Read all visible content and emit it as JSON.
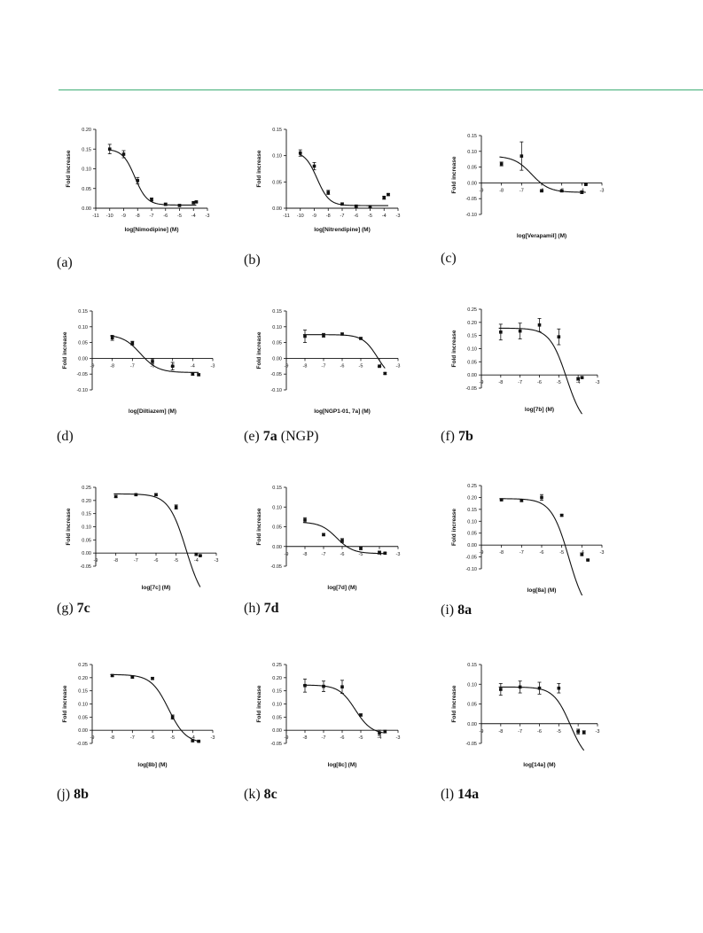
{
  "colors": {
    "rule": "#3fae75",
    "ink": "#111111"
  },
  "y_axis_label": "Fold increase",
  "chart_data": [
    {
      "type": "scatter",
      "panel_id": "a",
      "caption": {
        "letter": "(a)",
        "compound": "",
        "note": ""
      },
      "xlabel": "log[Nimodipine] (M)",
      "ylabel": "Fold increase",
      "xlim": [
        -11,
        -3
      ],
      "ylim": [
        0,
        0.2
      ],
      "xticks": [
        -11,
        -10,
        -9,
        -8,
        -7,
        -6,
        -5,
        -4,
        -3
      ],
      "yticks": [
        0,
        0.05,
        0.1,
        0.15,
        0.2
      ],
      "points": [
        [
          -10,
          0.15,
          0.012
        ],
        [
          -9,
          0.137,
          0.009
        ],
        [
          -8,
          0.07,
          0.008
        ],
        [
          -7,
          0.022,
          0.004
        ],
        [
          -6,
          0.01,
          0.003
        ],
        [
          -5,
          0.007,
          0.002
        ],
        [
          -4,
          0.014,
          0.002
        ],
        [
          -3.8,
          0.016,
          0.002
        ]
      ],
      "fit": {
        "top": 0.15,
        "bottom": 0.008,
        "logEC50": -8.2,
        "hill": -1
      }
    },
    {
      "type": "scatter",
      "panel_id": "b",
      "caption": {
        "letter": "(b)",
        "compound": "",
        "note": ""
      },
      "xlabel": "log[Nitrendipine] (M)",
      "ylabel": "Fold increase",
      "xlim": [
        -11,
        -3
      ],
      "ylim": [
        0,
        0.15
      ],
      "xticks": [
        -11,
        -10,
        -9,
        -8,
        -7,
        -6,
        -5,
        -4,
        -3
      ],
      "yticks": [
        0,
        0.05,
        0.1,
        0.15
      ],
      "points": [
        [
          -10,
          0.105,
          0.006
        ],
        [
          -9,
          0.08,
          0.007
        ],
        [
          -8,
          0.03,
          0.004
        ],
        [
          -7,
          0.008,
          0.002
        ],
        [
          -6,
          0.004,
          0.002
        ],
        [
          -5,
          0.003,
          0.002
        ],
        [
          -4,
          0.02,
          0.003
        ],
        [
          -3.7,
          0.026,
          0.002
        ]
      ],
      "fit": {
        "top": 0.108,
        "bottom": 0.005,
        "logEC50": -8.8,
        "hill": -1
      }
    },
    {
      "type": "scatter",
      "panel_id": "c",
      "caption": {
        "letter": "(c)",
        "compound": "",
        "note": ""
      },
      "xlabel": "log[Verapamil] (M)",
      "ylabel": "Fold increase",
      "xlim": [
        -9,
        -3
      ],
      "ylim": [
        -0.1,
        0.15
      ],
      "xticks": [
        -9,
        -8,
        -7,
        -6,
        -5,
        -4,
        -3
      ],
      "yticks": [
        -0.1,
        -0.05,
        0,
        0.05,
        0.1,
        0.15
      ],
      "points": [
        [
          -8,
          0.06,
          0.006
        ],
        [
          -7,
          0.085,
          0.045
        ],
        [
          -6,
          -0.025,
          0.004
        ],
        [
          -5,
          -0.025,
          0.004
        ],
        [
          -4,
          -0.03,
          0.004
        ],
        [
          -3.8,
          -0.005,
          0.002
        ]
      ],
      "fit": {
        "top": 0.085,
        "bottom": -0.03,
        "logEC50": -6.5,
        "hill": -1
      }
    },
    {
      "type": "scatter",
      "panel_id": "d",
      "caption": {
        "letter": "(d)",
        "compound": "",
        "note": ""
      },
      "xlabel": "log[Diltiazem] (M)",
      "ylabel": "Fold increase",
      "xlim": [
        -9,
        -3
      ],
      "ylim": [
        -0.1,
        0.15
      ],
      "xticks": [
        -9,
        -8,
        -7,
        -6,
        -5,
        -4,
        -3
      ],
      "yticks": [
        -0.1,
        -0.05,
        0,
        0.05,
        0.1,
        0.15
      ],
      "points": [
        [
          -8,
          0.065,
          0.008
        ],
        [
          -7,
          0.048,
          0.006
        ],
        [
          -6,
          -0.01,
          0.008
        ],
        [
          -5,
          -0.025,
          0.012
        ],
        [
          -4,
          -0.05,
          0.004
        ],
        [
          -3.7,
          -0.052,
          0.003
        ]
      ],
      "fit": {
        "top": 0.075,
        "bottom": -0.045,
        "logEC50": -6.6,
        "hill": -1
      }
    },
    {
      "type": "scatter",
      "panel_id": "e",
      "caption": {
        "letter": "(e)",
        "compound": "7a",
        "note": "(NGP)"
      },
      "xlabel": "log[NGP1-01, 7a] (M)",
      "ylabel": "Fold increase",
      "xlim": [
        -9,
        -3
      ],
      "ylim": [
        -0.1,
        0.15
      ],
      "xticks": [
        -9,
        -8,
        -7,
        -6,
        -5,
        -4,
        -3
      ],
      "yticks": [
        -0.1,
        -0.05,
        0,
        0.05,
        0.1,
        0.15
      ],
      "points": [
        [
          -8,
          0.07,
          0.02
        ],
        [
          -7,
          0.073,
          0.006
        ],
        [
          -6,
          0.077,
          0.003
        ],
        [
          -5,
          0.063,
          0.003
        ],
        [
          -4,
          -0.025,
          0.004
        ],
        [
          -3.7,
          -0.048,
          0.003
        ]
      ],
      "fit": {
        "top": 0.075,
        "bottom": -0.07,
        "logEC50": -4.1,
        "hill": -1.1
      }
    },
    {
      "type": "scatter",
      "panel_id": "f",
      "caption": {
        "letter": "(f)",
        "compound": "7b",
        "note": ""
      },
      "xlabel": "log[7b] (M)",
      "ylabel": "Fold increase",
      "xlim": [
        -9,
        -3
      ],
      "ylim": [
        -0.05,
        0.25
      ],
      "xticks": [
        -9,
        -8,
        -7,
        -6,
        -5,
        -4,
        -3
      ],
      "yticks": [
        -0.05,
        0,
        0.05,
        0.1,
        0.15,
        0.2,
        0.25
      ],
      "points": [
        [
          -8,
          0.163,
          0.03
        ],
        [
          -7,
          0.167,
          0.03
        ],
        [
          -6,
          0.19,
          0.025
        ],
        [
          -5,
          0.145,
          0.03
        ],
        [
          -4,
          -0.015,
          0.005
        ],
        [
          -3.8,
          -0.01,
          0.003
        ]
      ],
      "fit": {
        "top": 0.178,
        "bottom": -0.2,
        "logEC50": -4.6,
        "hill": -1
      }
    },
    {
      "type": "scatter",
      "panel_id": "g",
      "caption": {
        "letter": "(g)",
        "compound": "7c",
        "note": ""
      },
      "xlabel": "log[7c] (M)",
      "ylabel": "Fold increase",
      "xlim": [
        -9,
        -3
      ],
      "ylim": [
        -0.05,
        0.25
      ],
      "xticks": [
        -9,
        -8,
        -7,
        -6,
        -5,
        -4,
        -3
      ],
      "yticks": [
        -0.05,
        0,
        0.05,
        0.1,
        0.15,
        0.2,
        0.25
      ],
      "points": [
        [
          -8,
          0.215,
          0.004
        ],
        [
          -7,
          0.222,
          0.003
        ],
        [
          -6,
          0.222,
          0.004
        ],
        [
          -5,
          0.175,
          0.008
        ],
        [
          -4,
          -0.005,
          0.004
        ],
        [
          -3.8,
          -0.01,
          0.002
        ]
      ],
      "fit": {
        "top": 0.225,
        "bottom": -0.2,
        "logEC50": -4.5,
        "hill": -1
      }
    },
    {
      "type": "scatter",
      "panel_id": "h",
      "caption": {
        "letter": "(h)",
        "compound": "7d",
        "note": ""
      },
      "xlabel": "log[7d] (M)",
      "ylabel": "Fold increase",
      "xlim": [
        -9,
        -3
      ],
      "ylim": [
        -0.05,
        0.15
      ],
      "xticks": [
        -9,
        -8,
        -7,
        -6,
        -5,
        -4,
        -3
      ],
      "yticks": [
        -0.05,
        0,
        0.05,
        0.1,
        0.15
      ],
      "points": [
        [
          -8,
          0.067,
          0.006
        ],
        [
          -7,
          0.03,
          0.003
        ],
        [
          -6,
          0.015,
          0.005
        ],
        [
          -5,
          -0.005,
          0.003
        ],
        [
          -4,
          -0.015,
          0.003
        ],
        [
          -3.7,
          -0.017,
          0.002
        ]
      ],
      "fit": {
        "top": 0.062,
        "bottom": -0.018,
        "logEC50": -6.3,
        "hill": -1
      }
    },
    {
      "type": "scatter",
      "panel_id": "i",
      "caption": {
        "letter": "(i)",
        "compound": "8a",
        "note": ""
      },
      "xlabel": "log[8a] (M)",
      "ylabel": "Fold increase",
      "xlim": [
        -9,
        -3
      ],
      "ylim": [
        -0.1,
        0.25
      ],
      "xticks": [
        -9,
        -8,
        -7,
        -6,
        -5,
        -4,
        -3
      ],
      "yticks": [
        -0.1,
        -0.05,
        0,
        0.05,
        0.1,
        0.15,
        0.2,
        0.25
      ],
      "points": [
        [
          -8,
          0.19,
          0.003
        ],
        [
          -7,
          0.187,
          0.004
        ],
        [
          -6,
          0.2,
          0.012
        ],
        [
          -5,
          0.125,
          0.004
        ],
        [
          -4,
          -0.04,
          0.004
        ],
        [
          -3.7,
          -0.063,
          0.003
        ]
      ],
      "fit": {
        "top": 0.195,
        "bottom": -0.3,
        "logEC50": -4.65,
        "hill": -1
      }
    },
    {
      "type": "scatter",
      "panel_id": "j",
      "caption": {
        "letter": "(j)",
        "compound": "8b",
        "note": ""
      },
      "xlabel": "log[8b] (M)",
      "ylabel": "Fold increase",
      "xlim": [
        -9,
        -3
      ],
      "ylim": [
        -0.05,
        0.25
      ],
      "xticks": [
        -9,
        -8,
        -7,
        -6,
        -5,
        -4,
        -3
      ],
      "yticks": [
        -0.05,
        0,
        0.05,
        0.1,
        0.15,
        0.2,
        0.25
      ],
      "points": [
        [
          -8,
          0.208,
          0.003
        ],
        [
          -7,
          0.202,
          0.003
        ],
        [
          -6,
          0.197,
          0.004
        ],
        [
          -5,
          0.05,
          0.008
        ],
        [
          -4,
          -0.04,
          0.003
        ],
        [
          -3.7,
          -0.042,
          0.002
        ]
      ],
      "fit": {
        "top": 0.212,
        "bottom": -0.05,
        "logEC50": -5.2,
        "hill": -1
      }
    },
    {
      "type": "scatter",
      "panel_id": "k",
      "caption": {
        "letter": "(k)",
        "compound": "8c",
        "note": ""
      },
      "xlabel": "log[8c] (M)",
      "ylabel": "Fold increase",
      "xlim": [
        -9,
        -3
      ],
      "ylim": [
        -0.05,
        0.25
      ],
      "xticks": [
        -9,
        -8,
        -7,
        -6,
        -5,
        -4,
        -3
      ],
      "yticks": [
        -0.05,
        0,
        0.05,
        0.1,
        0.15,
        0.2,
        0.25
      ],
      "points": [
        [
          -8,
          0.17,
          0.025
        ],
        [
          -7,
          0.167,
          0.02
        ],
        [
          -6,
          0.165,
          0.025
        ],
        [
          -5,
          0.058,
          0.004
        ],
        [
          -4,
          -0.01,
          0.01
        ],
        [
          -3.7,
          -0.005,
          0.005
        ]
      ],
      "fit": {
        "top": 0.172,
        "bottom": -0.015,
        "logEC50": -5.3,
        "hill": -1
      }
    },
    {
      "type": "scatter",
      "panel_id": "l",
      "caption": {
        "letter": "(l)",
        "compound": "14a",
        "note": ""
      },
      "xlabel": "log[14a] (M)",
      "ylabel": "Fold increase",
      "xlim": [
        -9,
        -3
      ],
      "ylim": [
        -0.05,
        0.15
      ],
      "xticks": [
        -9,
        -8,
        -7,
        -6,
        -5,
        -4,
        -3
      ],
      "yticks": [
        -0.05,
        0,
        0.05,
        0.1,
        0.15
      ],
      "points": [
        [
          -8,
          0.087,
          0.015
        ],
        [
          -7,
          0.093,
          0.015
        ],
        [
          -6,
          0.09,
          0.015
        ],
        [
          -5,
          0.09,
          0.012
        ],
        [
          -4,
          -0.02,
          0.006
        ],
        [
          -3.7,
          -0.022,
          0.004
        ]
      ],
      "fit": {
        "top": 0.093,
        "bottom": -0.1,
        "logEC50": -4.4,
        "hill": -1
      }
    }
  ]
}
